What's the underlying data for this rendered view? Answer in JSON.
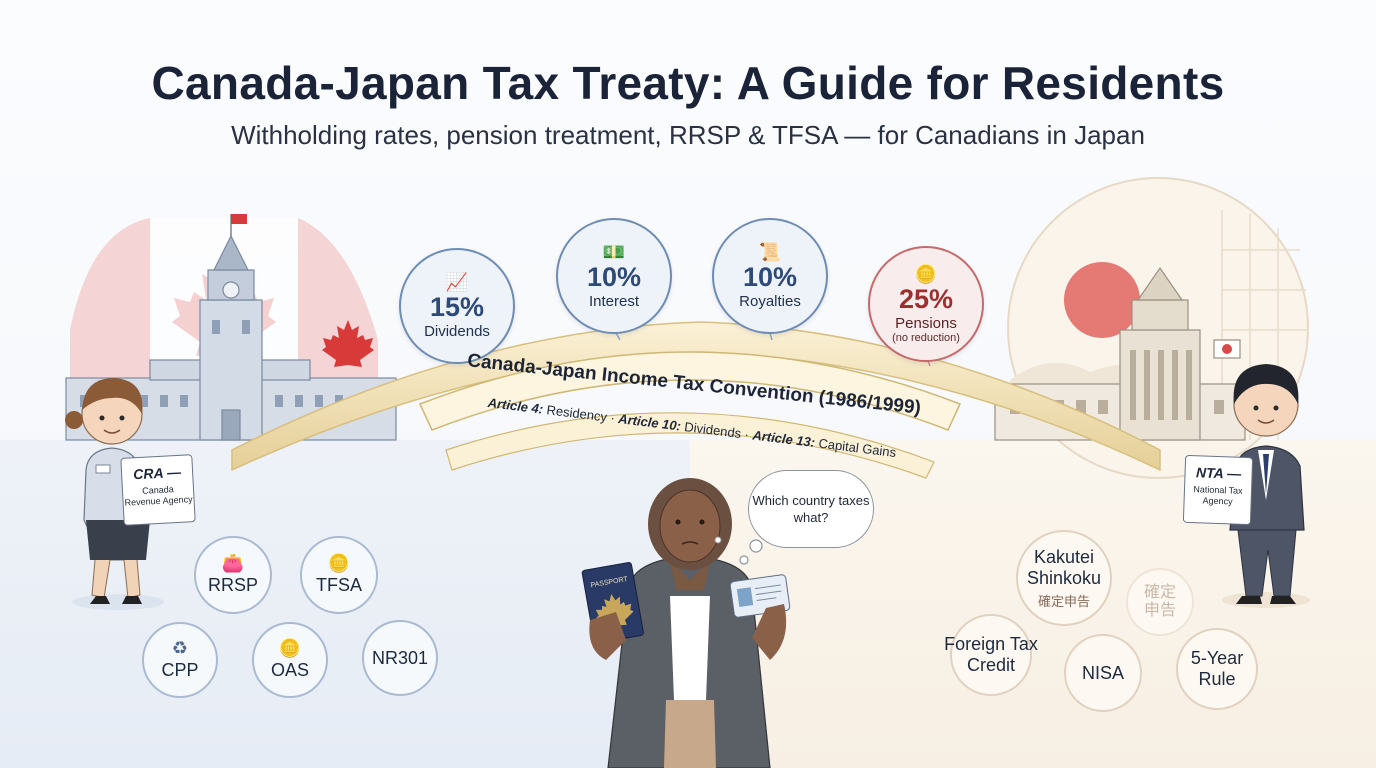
{
  "header": {
    "title": "Canada-Japan Tax Treaty: A Guide for Residents",
    "subtitle": "Withholding rates, pension treatment, RRSP & TFSA — for Canadians in Japan"
  },
  "colors": {
    "canada_red": "#d83a3a",
    "japan_red": "#e0635f",
    "bubble_blue": "#6f8cb3",
    "bridge_gold": "#e8d39a"
  },
  "rates": [
    {
      "pct": "15%",
      "label": "Dividends",
      "icon": "chart-icon"
    },
    {
      "pct": "10%",
      "label": "Interest",
      "icon": "banknote-icon"
    },
    {
      "pct": "10%",
      "label": "Royalties",
      "icon": "document-icon"
    },
    {
      "pct": "25%",
      "label": "Pensions",
      "note": "(no reduction)",
      "icon": "hand-coin-icon"
    }
  ],
  "treaty": {
    "name": "Canada-Japan Income Tax Convention (1986/1999)",
    "articles": [
      {
        "num": "Article 4:",
        "topic": "Residency"
      },
      {
        "num": "Article 10:",
        "topic": "Dividends"
      },
      {
        "num": "Article 13:",
        "topic": "Capital Gains"
      }
    ],
    "separator": "·"
  },
  "cra": {
    "abbr": "CRA —",
    "full": "Canada Revenue Agency"
  },
  "nta": {
    "abbr": "NTA —",
    "full": "National Tax Agency"
  },
  "canada_items": [
    "RRSP",
    "TFSA",
    "CPP",
    "OAS",
    "NR301"
  ],
  "japan_items": {
    "kakutei": {
      "label": "Kakutei Shinkoku",
      "kanji": "確定申告"
    },
    "kakutei_faded": "確定申告",
    "ftc": "Foreign Tax Credit",
    "nisa": "NISA",
    "five_year": "5-Year Rule"
  },
  "thought": "Which country taxes what?",
  "passport_label": "PASSPORT"
}
